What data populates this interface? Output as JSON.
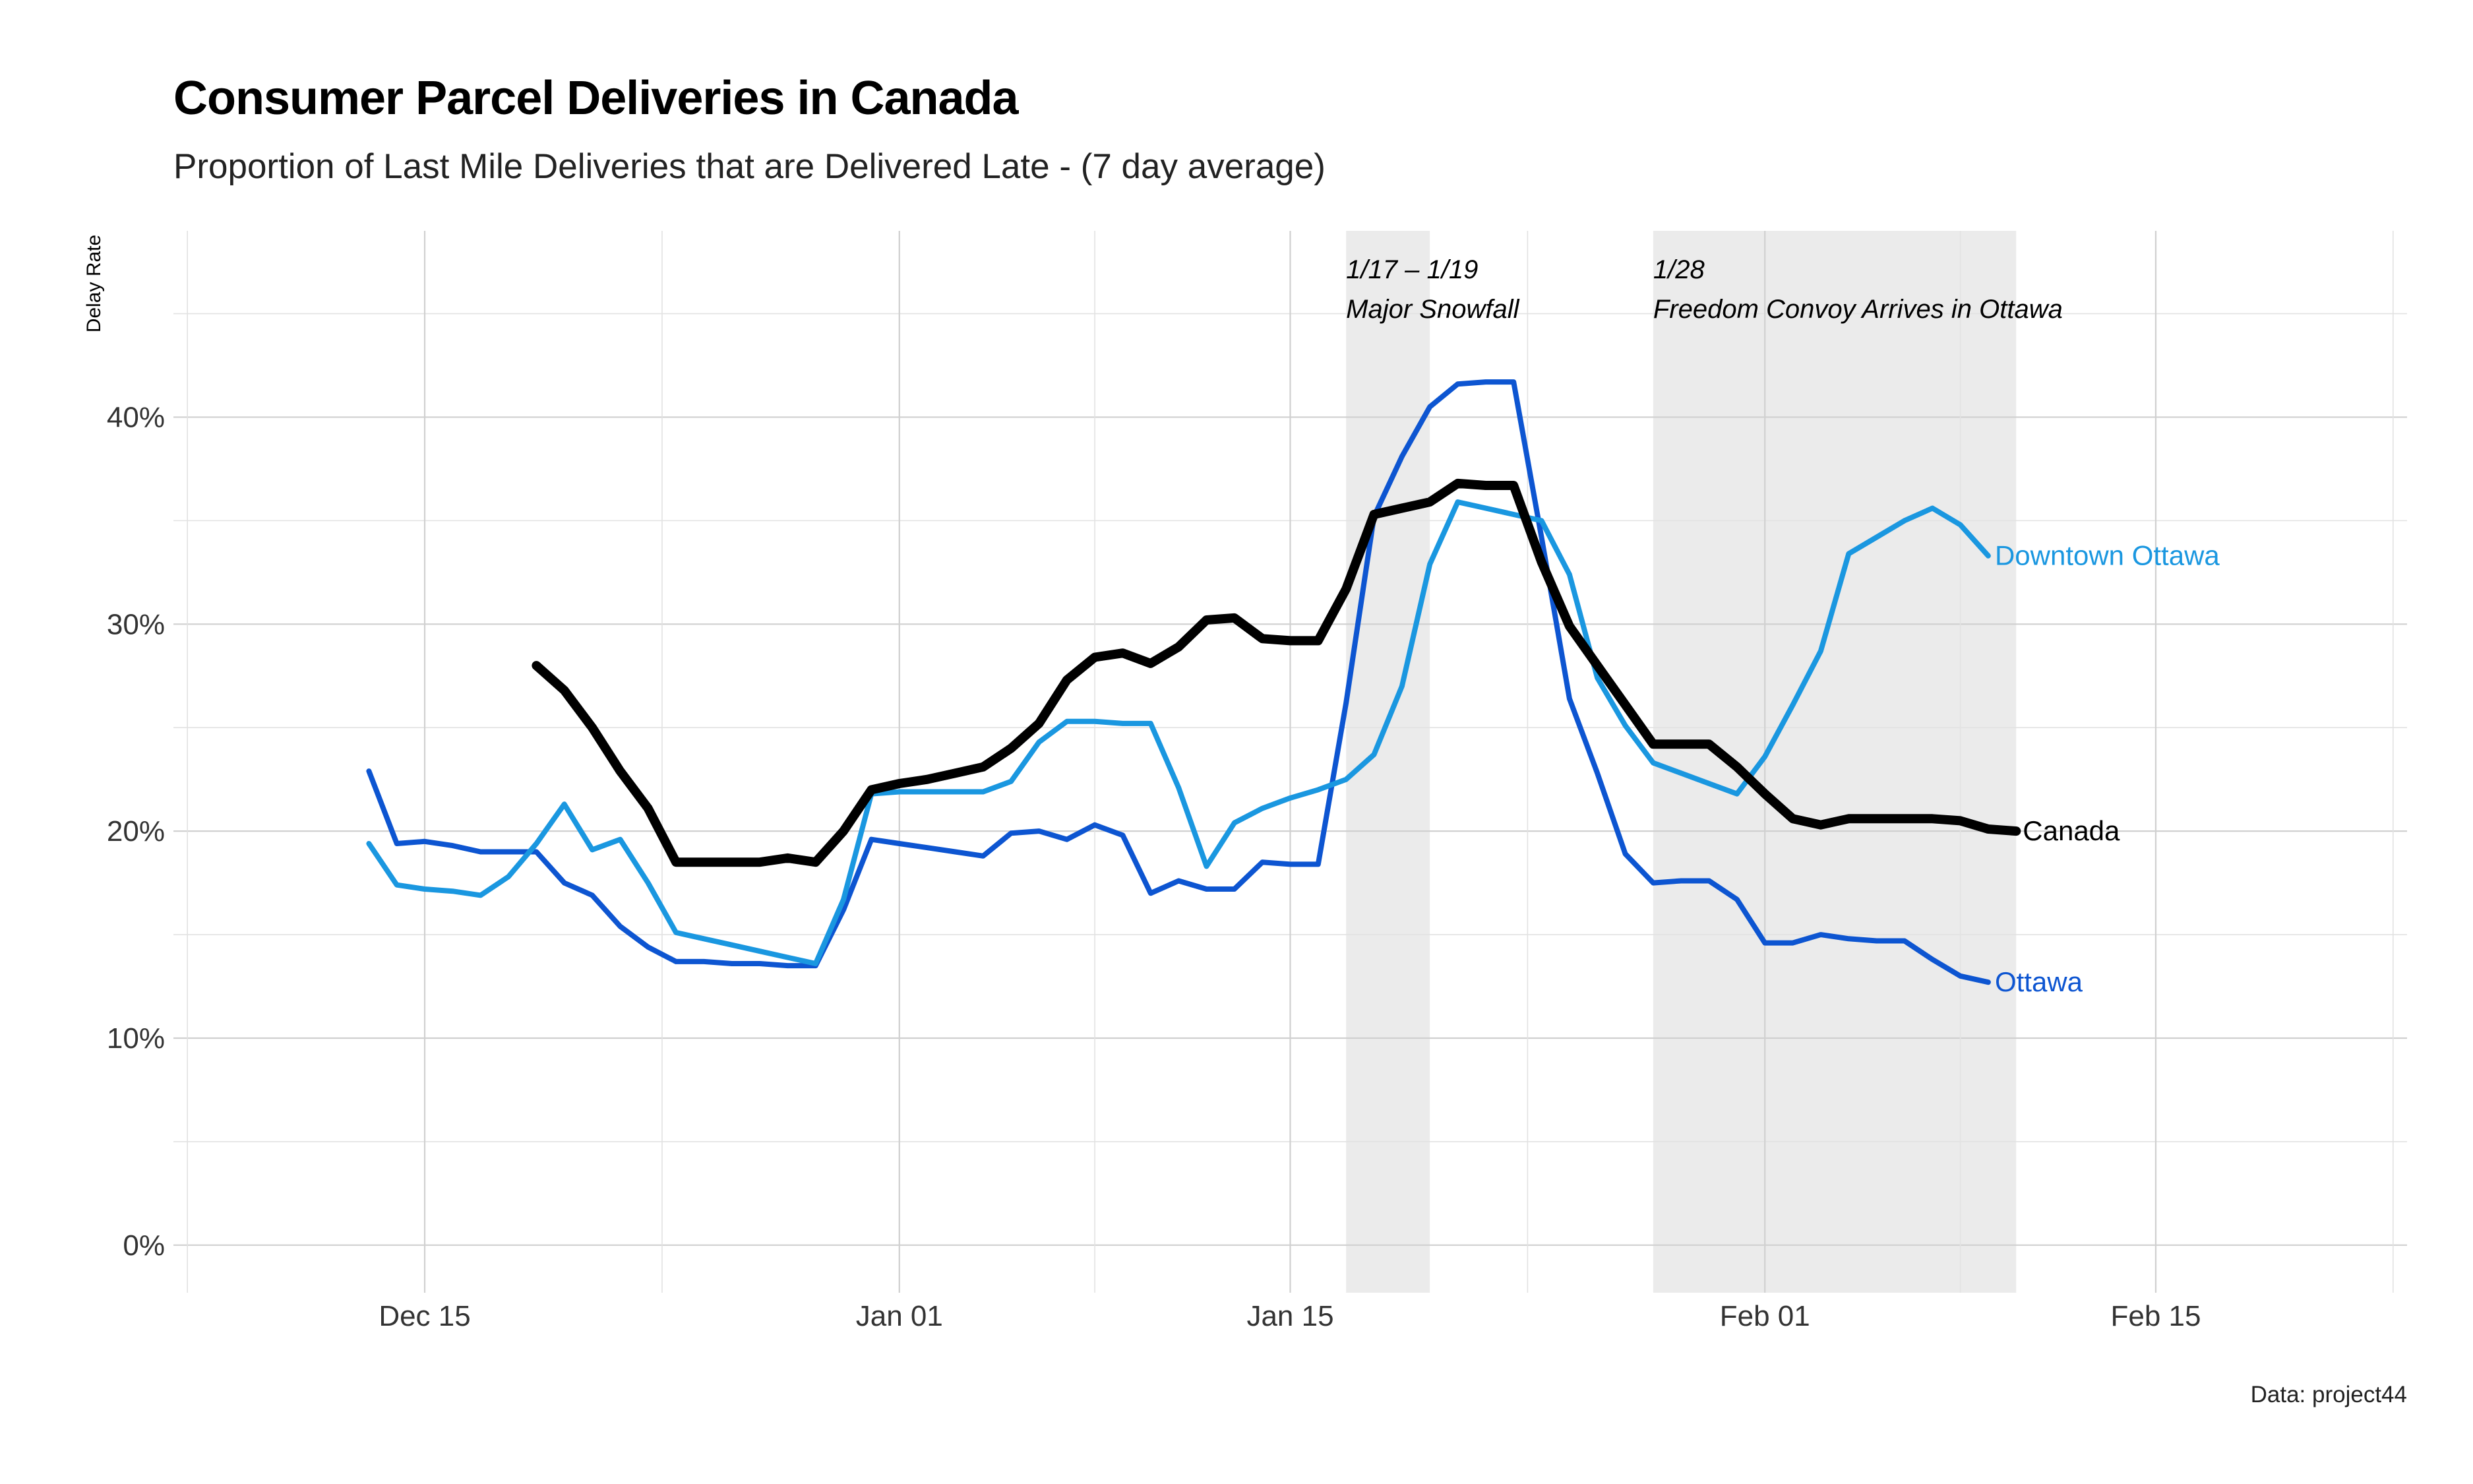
{
  "chart_data": {
    "type": "line",
    "title": "Consumer Parcel Deliveries in Canada",
    "subtitle": "Proportion of Last Mile Deliveries that are Delivered Late - (7 day average)",
    "caption": "Data: project44",
    "xlabel": "",
    "ylabel": "Delay Rate",
    "xlim": [
      -9,
      71
    ],
    "ylim": [
      -2.3,
      49
    ],
    "x_ticks": [
      {
        "x": 0,
        "label": "Dec 15"
      },
      {
        "x": 17,
        "label": "Jan 01"
      },
      {
        "x": 31,
        "label": "Jan 15"
      },
      {
        "x": 48,
        "label": "Feb 01"
      },
      {
        "x": 62,
        "label": "Feb 15"
      }
    ],
    "y_ticks": [
      {
        "y": 0,
        "label": "0%"
      },
      {
        "y": 10,
        "label": "10%"
      },
      {
        "y": 20,
        "label": "20%"
      },
      {
        "y": 30,
        "label": "30%"
      },
      {
        "y": 40,
        "label": "40%"
      }
    ],
    "x_unit": "days since Dec 15",
    "shaded_periods": [
      {
        "x_start": 33,
        "x_end": 36,
        "date_label": "1/17 – 1/19",
        "event_label": "Major Snowfall"
      },
      {
        "x_start": 44,
        "x_end": 57,
        "date_label": "1/28",
        "event_label": "Freedom Convoy Arrives in Ottawa"
      }
    ],
    "series": [
      {
        "name": "Canada",
        "color": "#000000",
        "label_color": "#000000",
        "x": [
          4,
          5,
          6,
          7,
          8,
          9,
          10,
          11,
          12,
          13,
          14,
          15,
          16,
          17,
          18,
          19,
          20,
          21,
          22,
          23,
          24,
          25,
          26,
          27,
          28,
          29,
          30,
          31,
          32,
          33,
          34,
          35,
          36,
          37,
          38,
          39,
          40,
          41,
          42,
          43,
          44,
          45,
          46,
          47,
          48,
          49,
          50,
          51,
          52,
          53,
          54,
          55,
          56,
          57
        ],
        "values": [
          28.0,
          26.8,
          25.0,
          22.9,
          21.1,
          18.5,
          18.5,
          18.5,
          18.5,
          18.7,
          18.5,
          20.0,
          22.0,
          22.3,
          22.5,
          22.8,
          23.1,
          24.0,
          25.2,
          27.3,
          28.4,
          28.6,
          28.1,
          28.9,
          30.2,
          30.3,
          29.3,
          29.2,
          29.2,
          31.7,
          35.3,
          35.6,
          35.9,
          36.8,
          36.7,
          36.7,
          33.0,
          29.9,
          28.0,
          26.1,
          24.2,
          24.2,
          24.2,
          23.1,
          21.8,
          20.6,
          20.3,
          20.6,
          20.6,
          20.6,
          20.6,
          20.5,
          20.1,
          20.0
        ]
      },
      {
        "name": "Downtown Ottawa",
        "color": "#1a97e0",
        "label_color": "#1a97e0",
        "x": [
          -2,
          -1,
          0,
          1,
          2,
          3,
          4,
          5,
          6,
          7,
          8,
          9,
          10,
          11,
          12,
          13,
          14,
          15,
          16,
          17,
          18,
          19,
          20,
          21,
          22,
          23,
          24,
          25,
          26,
          27,
          28,
          29,
          30,
          31,
          32,
          33,
          34,
          35,
          36,
          37,
          38,
          39,
          40,
          41,
          42,
          43,
          44,
          45,
          46,
          47,
          48,
          49,
          50,
          51,
          52,
          53,
          54,
          55,
          56,
          57
        ],
        "values": [
          19.4,
          17.4,
          17.2,
          17.1,
          16.9,
          17.8,
          19.4,
          21.3,
          19.1,
          19.6,
          17.5,
          15.1,
          14.8,
          14.5,
          14.2,
          13.9,
          13.6,
          16.7,
          21.8,
          21.9,
          21.9,
          21.9,
          21.9,
          22.4,
          24.3,
          25.3,
          25.3,
          25.2,
          25.2,
          22.1,
          18.3,
          20.4,
          21.1,
          21.6,
          22.0,
          22.5,
          23.7,
          27.0,
          32.9,
          35.9,
          35.6,
          35.3,
          35.0,
          32.4,
          27.4,
          25.1,
          23.3,
          22.8,
          22.3,
          21.8,
          23.6,
          26.1,
          28.7,
          33.4,
          34.2,
          35.0,
          35.6,
          34.8,
          33.3,
          null
        ]
      },
      {
        "name": "Ottawa",
        "color": "#0d55d1",
        "label_color": "#0d55d1",
        "x": [
          -2,
          -1,
          0,
          1,
          2,
          3,
          4,
          5,
          6,
          7,
          8,
          9,
          10,
          11,
          12,
          13,
          14,
          15,
          16,
          17,
          18,
          19,
          20,
          21,
          22,
          23,
          24,
          25,
          26,
          27,
          28,
          29,
          30,
          31,
          32,
          33,
          34,
          35,
          36,
          37,
          38,
          39,
          40,
          41,
          42,
          43,
          44,
          45,
          46,
          47,
          48,
          49,
          50,
          51,
          52,
          53,
          54,
          55,
          56
        ],
        "values": [
          22.9,
          19.4,
          19.5,
          19.3,
          19.0,
          19.0,
          19.0,
          17.5,
          16.9,
          15.4,
          14.4,
          13.7,
          13.7,
          13.6,
          13.6,
          13.5,
          13.5,
          16.2,
          19.6,
          19.4,
          19.2,
          19.0,
          18.8,
          19.9,
          20.0,
          19.6,
          20.3,
          19.8,
          17.0,
          17.6,
          17.2,
          17.2,
          18.5,
          18.4,
          18.4,
          26.2,
          35.2,
          38.1,
          40.5,
          41.6,
          41.7,
          41.7,
          34.2,
          26.4,
          22.8,
          18.9,
          17.5,
          17.6,
          17.6,
          16.7,
          14.6,
          14.6,
          15.0,
          14.8,
          14.7,
          14.7,
          13.8,
          13.0,
          12.7
        ]
      }
    ]
  }
}
